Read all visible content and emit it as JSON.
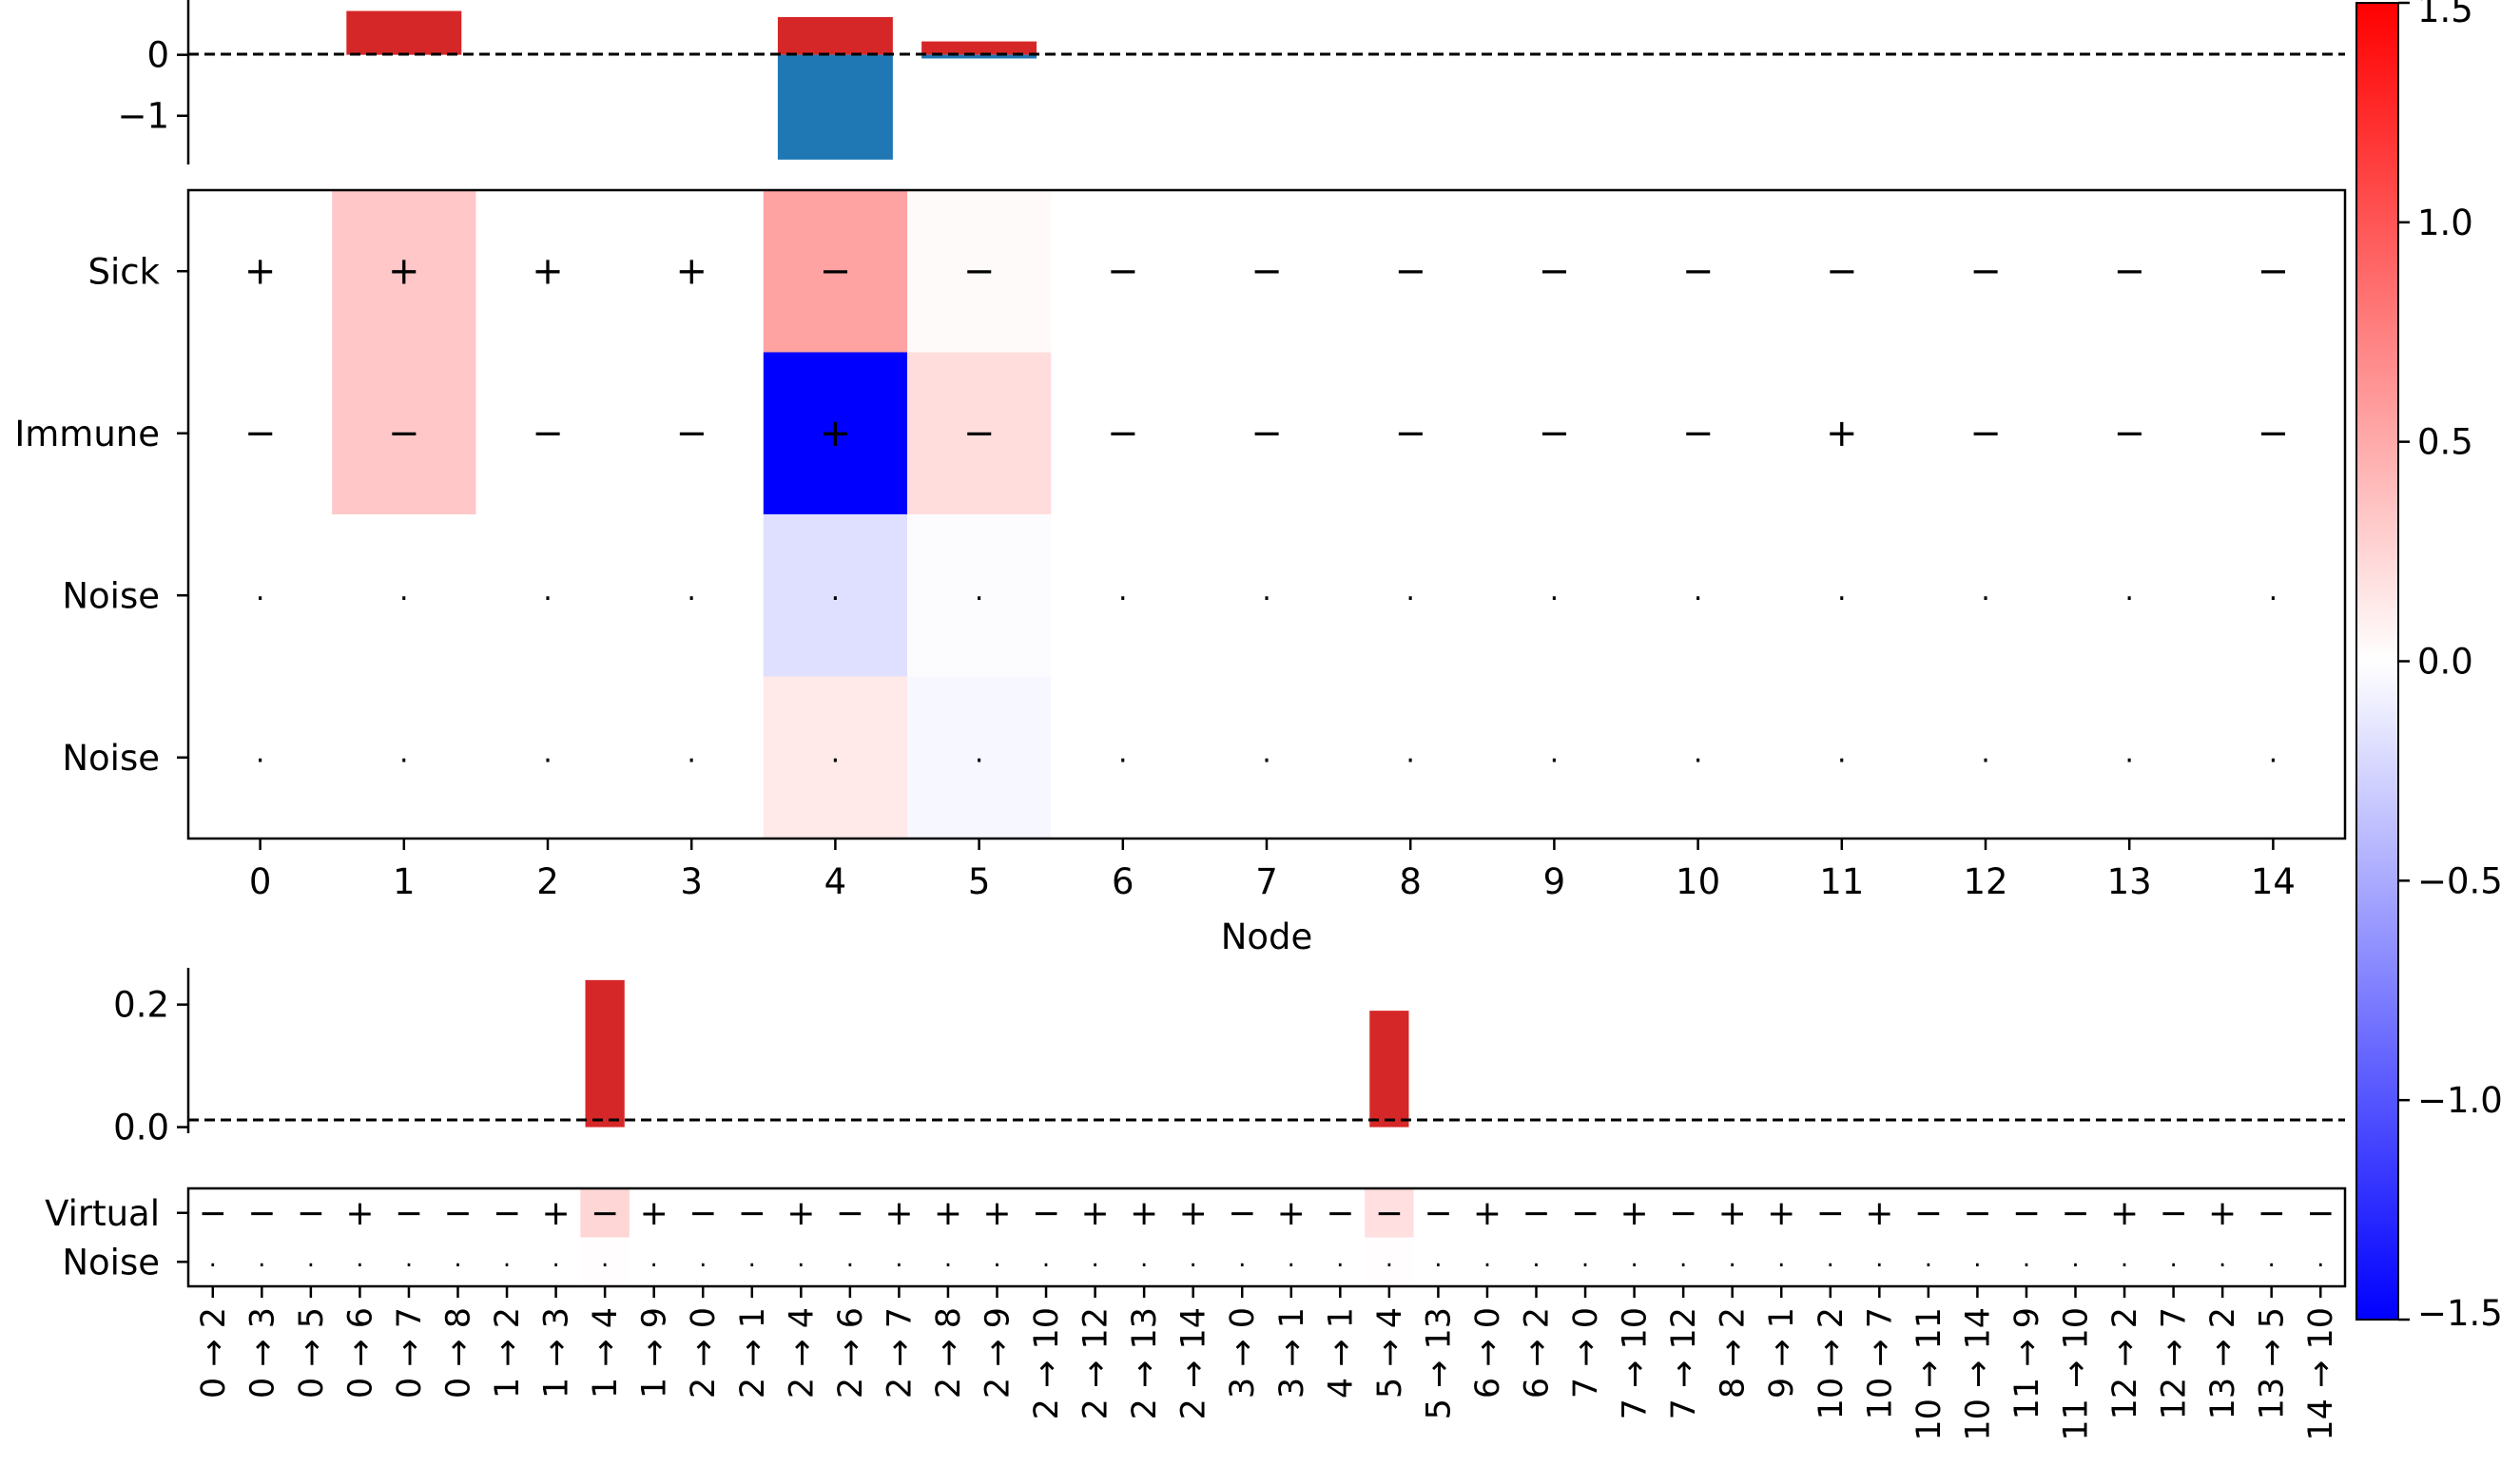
{
  "chart_data": [
    {
      "id": "node-bar",
      "type": "bar",
      "categories": [
        "0",
        "1",
        "2",
        "3",
        "4",
        "5",
        "6",
        "7",
        "8",
        "9",
        "10",
        "11",
        "12",
        "13",
        "14"
      ],
      "series": [
        {
          "name": "positive",
          "color": "#d62728",
          "values": [
            0,
            0.72,
            0,
            0,
            0.62,
            0.22,
            0,
            0,
            0,
            0,
            0,
            0,
            0,
            0,
            0
          ]
        },
        {
          "name": "negative",
          "color": "#1f77b4",
          "values": [
            0,
            0,
            0,
            0,
            -1.72,
            -0.06,
            0,
            0,
            0,
            0,
            0,
            0,
            0,
            0,
            0
          ]
        }
      ],
      "ylim": [
        -1.8,
        0.9
      ],
      "yticks": [
        0,
        -1
      ],
      "ytick_labels": [
        "0",
        "−1"
      ],
      "baseline": "dashed at 0"
    },
    {
      "id": "node-heatmap",
      "type": "heatmap",
      "xlabel": "Node",
      "x_ticks": [
        "0",
        "1",
        "2",
        "3",
        "4",
        "5",
        "6",
        "7",
        "8",
        "9",
        "10",
        "11",
        "12",
        "13",
        "14"
      ],
      "rows": [
        "Sick",
        "Immune",
        "Noise",
        "Noise"
      ],
      "values": [
        [
          0,
          0.33,
          0,
          0,
          0.55,
          0.03,
          0,
          0,
          0,
          0,
          0,
          0,
          0,
          0,
          0
        ],
        [
          0,
          0.33,
          0,
          0,
          -1.5,
          0.2,
          0,
          0,
          0,
          0,
          0,
          0,
          0,
          0,
          0
        ],
        [
          0,
          0,
          0,
          0,
          -0.19,
          -0.02,
          0,
          0,
          0,
          0,
          0,
          0,
          0,
          0,
          0
        ],
        [
          0,
          0,
          0,
          0,
          0.13,
          -0.05,
          0,
          0,
          0,
          0,
          0,
          0,
          0,
          0,
          0
        ]
      ],
      "markers": [
        [
          "+",
          "+",
          "+",
          "+",
          "−",
          "−",
          "−",
          "−",
          "−",
          "−",
          "−",
          "−",
          "−",
          "−",
          "−"
        ],
        [
          "−",
          "−",
          "−",
          "−",
          "+",
          "−",
          "−",
          "−",
          "−",
          "−",
          "−",
          "+",
          "−",
          "−",
          "−"
        ],
        [
          "·",
          "·",
          "·",
          "·",
          "·",
          "·",
          "·",
          "·",
          "·",
          "·",
          "·",
          "·",
          "·",
          "·",
          "·"
        ],
        [
          "·",
          "·",
          "·",
          "·",
          "·",
          "·",
          "·",
          "·",
          "·",
          "·",
          "·",
          "·",
          "·",
          "·",
          "·"
        ]
      ]
    },
    {
      "id": "edge-bar",
      "type": "bar",
      "categories": [
        "0 → 2",
        "0 → 3",
        "0 → 5",
        "0 → 6",
        "0 → 7",
        "0 → 8",
        "1 → 2",
        "1 → 3",
        "1 → 4",
        "1 → 9",
        "2 → 0",
        "2 → 1",
        "2 → 4",
        "2 → 6",
        "2 → 7",
        "2 → 8",
        "2 → 9",
        "2 → 10",
        "2 → 12",
        "2 → 13",
        "2 → 14",
        "3 → 0",
        "3 → 1",
        "4 → 1",
        "5 → 4",
        "5 → 13",
        "6 → 0",
        "6 → 2",
        "7 → 0",
        "7 → 10",
        "7 → 12",
        "8 → 2",
        "9 → 1",
        "10 → 2",
        "10 → 7",
        "10 → 11",
        "10 → 14",
        "11 → 9",
        "11 → 10",
        "12 → 2",
        "12 → 7",
        "13 → 2",
        "13 → 5",
        "14 → 10"
      ],
      "series": [
        {
          "name": "positive",
          "color": "#d62728",
          "values": [
            0,
            0,
            0,
            0,
            0,
            0,
            0,
            0,
            0.24,
            0,
            0,
            0,
            0,
            0,
            0,
            0,
            0,
            0,
            0,
            0,
            0,
            0,
            0,
            0,
            0.19,
            0,
            0,
            0,
            0,
            0,
            0,
            0,
            0,
            0,
            0,
            0,
            0,
            0,
            0,
            0,
            0,
            0,
            0,
            0
          ]
        }
      ],
      "ylim": [
        -0.01,
        0.26
      ],
      "yticks": [
        0.0,
        0.2
      ],
      "ytick_labels": [
        "0.0",
        "0.2"
      ],
      "baseline": "dashed at 0"
    },
    {
      "id": "edge-heatmap",
      "type": "heatmap",
      "rows": [
        "Virtual",
        "Noise"
      ],
      "x_ticks": [
        "0 → 2",
        "0 → 3",
        "0 → 5",
        "0 → 6",
        "0 → 7",
        "0 → 8",
        "1 → 2",
        "1 → 3",
        "1 → 4",
        "1 → 9",
        "2 → 0",
        "2 → 1",
        "2 → 4",
        "2 → 6",
        "2 → 7",
        "2 → 8",
        "2 → 9",
        "2 → 10",
        "2 → 12",
        "2 → 13",
        "2 → 14",
        "3 → 0",
        "3 → 1",
        "4 → 1",
        "5 → 4",
        "5 → 13",
        "6 → 0",
        "6 → 2",
        "7 → 0",
        "7 → 10",
        "7 → 12",
        "8 → 2",
        "9 → 1",
        "10 → 2",
        "10 → 7",
        "10 → 11",
        "10 → 14",
        "11 → 9",
        "11 → 10",
        "12 → 2",
        "12 → 7",
        "13 → 2",
        "13 → 5",
        "14 → 10"
      ],
      "values": [
        [
          0,
          0,
          0,
          0,
          0,
          0,
          0,
          0,
          0.24,
          0,
          0,
          0,
          0,
          0,
          0,
          0,
          0,
          0,
          0,
          0,
          0,
          0,
          0,
          0,
          0.19,
          0,
          0,
          0,
          0,
          0,
          0,
          0,
          0,
          0,
          0,
          0,
          0,
          0,
          0,
          0,
          0,
          0,
          0,
          0
        ],
        [
          0,
          0,
          0,
          0,
          0,
          0,
          0,
          0,
          0.01,
          0,
          0,
          0,
          0,
          0,
          0,
          0,
          0,
          0,
          0,
          0,
          0,
          0,
          0,
          0,
          0.01,
          0,
          0,
          0,
          0,
          0,
          0,
          0,
          0,
          0,
          0,
          0,
          0,
          0,
          0,
          0,
          0,
          0,
          0,
          0
        ]
      ],
      "markers": [
        [
          "−",
          "−",
          "−",
          "+",
          "−",
          "−",
          "−",
          "+",
          "−",
          "+",
          "−",
          "−",
          "+",
          "−",
          "+",
          "+",
          "+",
          "−",
          "+",
          "+",
          "+",
          "−",
          "+",
          "−",
          "−",
          "−",
          "+",
          "−",
          "−",
          "+",
          "−",
          "+",
          "+",
          "−",
          "+",
          "−",
          "−",
          "−",
          "−",
          "+",
          "−",
          "+",
          "−",
          "−"
        ],
        [
          "·",
          "·",
          "·",
          "·",
          "·",
          "·",
          "·",
          "·",
          "·",
          "·",
          "·",
          "·",
          "·",
          "·",
          "·",
          "·",
          "·",
          "·",
          "·",
          "·",
          "·",
          "·",
          "·",
          "·",
          "·",
          "·",
          "·",
          "·",
          "·",
          "·",
          "·",
          "·",
          "·",
          "·",
          "·",
          "·",
          "·",
          "·",
          "·",
          "·",
          "·",
          "·",
          "·",
          "·"
        ]
      ]
    },
    {
      "id": "colorbar",
      "type": "colorbar",
      "colormap": "bwr",
      "range": [
        -1.5,
        1.5
      ],
      "ticks": [
        1.5,
        1.0,
        0.5,
        0.0,
        -0.5,
        -1.0,
        -1.5
      ],
      "tick_labels": [
        "1.5",
        "1.0",
        "0.5",
        "0.0",
        "−0.5",
        "−1.0",
        "−1.5"
      ]
    }
  ]
}
